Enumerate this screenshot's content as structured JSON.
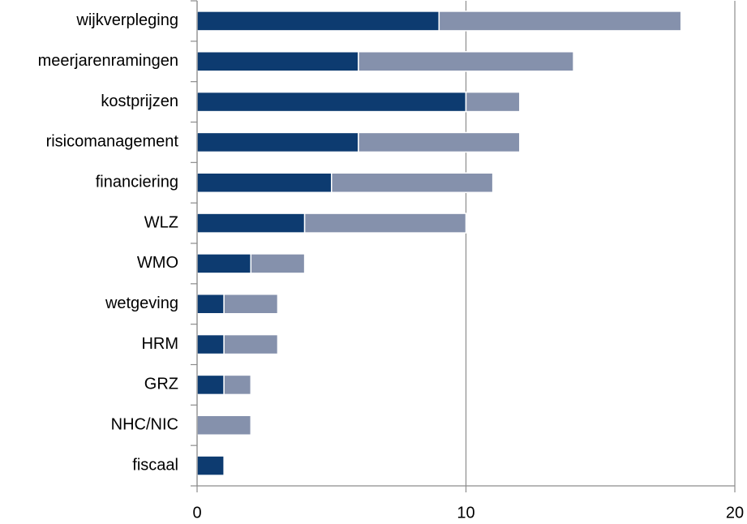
{
  "chart_data": {
    "type": "stacked-barh",
    "categories": [
      "wijkverpleging",
      "meerjarenramingen",
      "kostprijzen",
      "risicomanagement",
      "financiering",
      "WLZ",
      "WMO",
      "wetgeving",
      "HRM",
      "GRZ",
      "NHC/NIC",
      "fiscaal"
    ],
    "series": [
      {
        "color": "#0d3b70",
        "values": [
          9,
          6,
          10,
          6,
          5,
          4,
          2,
          1,
          1,
          1,
          0,
          1
        ]
      },
      {
        "color": "#8591ac",
        "values": [
          9,
          8,
          2,
          6,
          6,
          6,
          2,
          2,
          2,
          1,
          2,
          0
        ]
      }
    ],
    "xlim": [
      0,
      20
    ],
    "xticks": [
      0,
      10,
      20
    ],
    "grid": true
  }
}
